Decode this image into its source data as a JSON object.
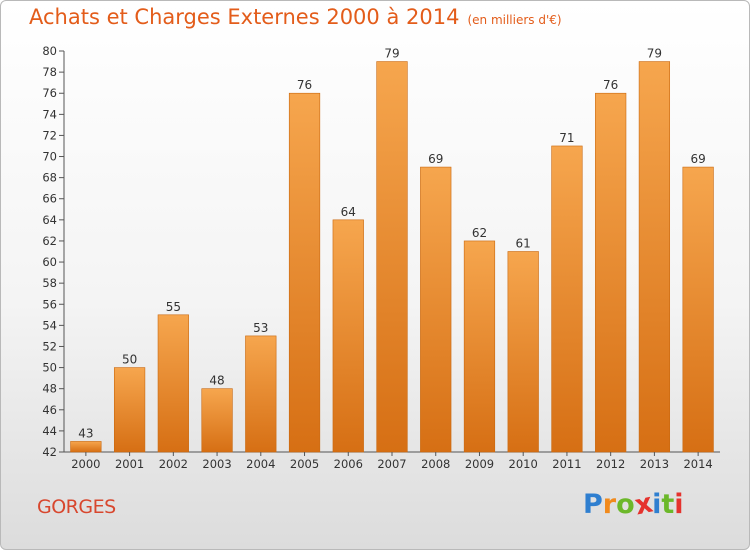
{
  "title": "Achats et Charges Externes 2000 à 2014",
  "subtitle": "(en milliers d'€)",
  "location": "GORGES",
  "logo": {
    "letters": [
      "P",
      "r",
      "o",
      "x",
      "i",
      "t",
      "i"
    ],
    "colors": [
      "#2f7fd0",
      "#f18a1c",
      "#6cb82a",
      "#e5322d",
      "#2f7fd0",
      "#6cb82a",
      "#e5322d"
    ]
  },
  "colors": {
    "bar_top": "#f6a64e",
    "bar_bottom": "#d66f14",
    "bar_edge": "#c9680f",
    "axis": "#555555",
    "grid": "#cfcfcf"
  },
  "chart_data": {
    "type": "bar",
    "categories": [
      "2000",
      "2001",
      "2002",
      "2003",
      "2004",
      "2005",
      "2006",
      "2007",
      "2008",
      "2009",
      "2010",
      "2011",
      "2012",
      "2013",
      "2014"
    ],
    "values": [
      43,
      50,
      55,
      48,
      53,
      76,
      64,
      79,
      69,
      62,
      61,
      71,
      76,
      79,
      69
    ],
    "data_labels": [
      "43",
      "50",
      "55",
      "48",
      "53",
      "76",
      "64",
      "79",
      "69",
      "62",
      "61",
      "71",
      "76",
      "79",
      "69"
    ],
    "ylim": [
      42,
      80
    ],
    "yticks": [
      "42",
      "44",
      "46",
      "48",
      "50",
      "52",
      "54",
      "56",
      "58",
      "60",
      "62",
      "64",
      "66",
      "68",
      "70",
      "72",
      "74",
      "76",
      "78",
      "80"
    ],
    "grid": false,
    "legend": "none"
  }
}
